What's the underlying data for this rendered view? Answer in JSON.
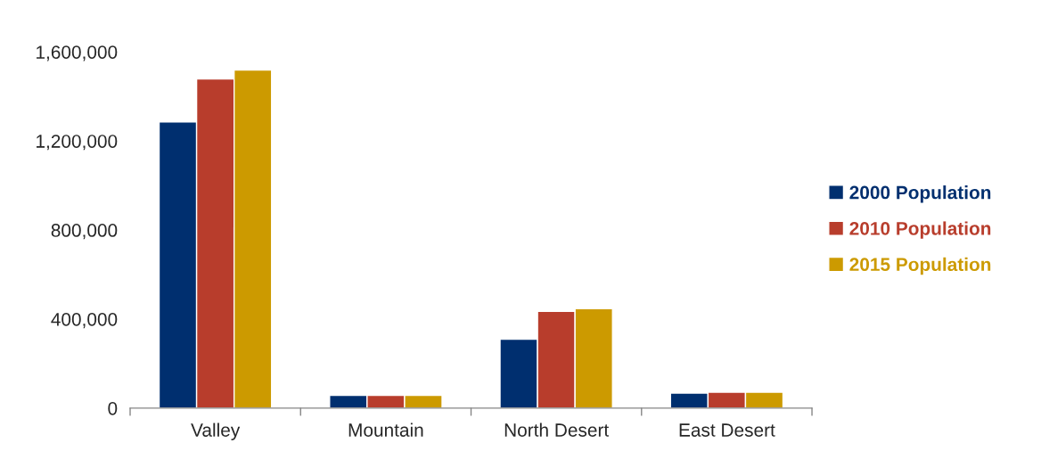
{
  "chart_data": {
    "type": "bar",
    "categories": [
      "Valley",
      "Mountain",
      "North Desert",
      "East Desert"
    ],
    "series": [
      {
        "name": "2000 Population",
        "color": "#002f6f",
        "values": [
          1285000,
          58000,
          310000,
          68000
        ]
      },
      {
        "name": "2010 Population",
        "color": "#b83d2c",
        "values": [
          1478000,
          58000,
          435000,
          72000
        ]
      },
      {
        "name": "2015 Population",
        "color": "#cc9a00",
        "values": [
          1518000,
          58000,
          447000,
          72000
        ]
      }
    ],
    "ylim": [
      0,
      1600000
    ],
    "yticks": [
      {
        "value": 0,
        "label": "0"
      },
      {
        "value": 400000,
        "label": "400,000"
      },
      {
        "value": 800000,
        "label": "800,000"
      },
      {
        "value": 1200000,
        "label": "1,200,000"
      },
      {
        "value": 1600000,
        "label": "1,600,000"
      }
    ],
    "legend": "right"
  }
}
